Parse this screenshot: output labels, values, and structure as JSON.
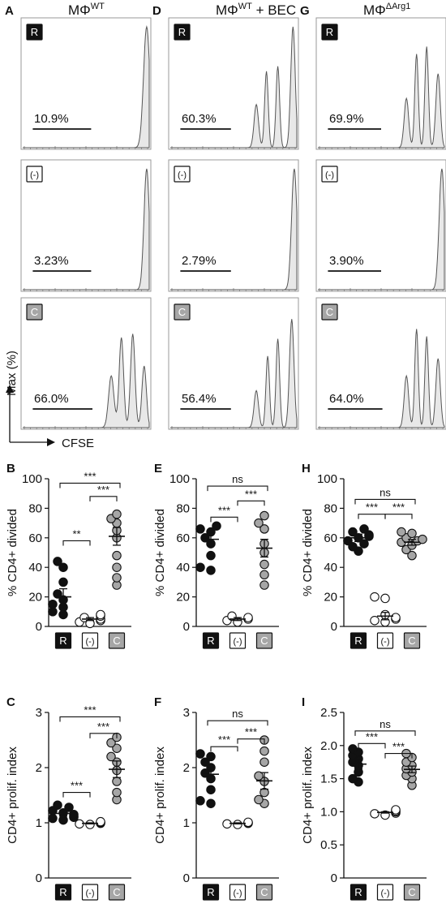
{
  "flow": {
    "columns": [
      {
        "letter": "A",
        "title": "MΦ",
        "sup": "WT",
        "rest": ""
      },
      {
        "letter": "D",
        "title": "MΦ",
        "sup": "WT",
        "rest": " + BEC"
      },
      {
        "letter": "G",
        "title": "MΦ",
        "sup": "ΔArg1",
        "rest": ""
      }
    ],
    "rows": [
      "R",
      "(-)",
      "C"
    ],
    "percents": [
      [
        "10.9%",
        "3.23%",
        "66.0%"
      ],
      [
        "60.3%",
        "2.79%",
        "56.4%"
      ],
      [
        "69.9%",
        "3.90%",
        "64.0%"
      ]
    ],
    "peaks": [
      [
        [
          {
            "pos": 0.98,
            "h": 0.98,
            "w": 0.07
          }
        ],
        [
          {
            "pos": 0.98,
            "h": 0.98,
            "w": 0.06
          }
        ],
        [
          {
            "pos": 0.7,
            "h": 0.42,
            "w": 0.06
          },
          {
            "pos": 0.78,
            "h": 0.73,
            "w": 0.05
          },
          {
            "pos": 0.87,
            "h": 0.76,
            "w": 0.05
          },
          {
            "pos": 0.96,
            "h": 0.5,
            "w": 0.05
          }
        ]
      ],
      [
        [
          {
            "pos": 0.68,
            "h": 0.35,
            "w": 0.05
          },
          {
            "pos": 0.76,
            "h": 0.62,
            "w": 0.04
          },
          {
            "pos": 0.85,
            "h": 0.66,
            "w": 0.04
          },
          {
            "pos": 0.97,
            "h": 0.98,
            "w": 0.05
          }
        ],
        [
          {
            "pos": 0.98,
            "h": 0.98,
            "w": 0.06
          }
        ],
        [
          {
            "pos": 0.68,
            "h": 0.3,
            "w": 0.05
          },
          {
            "pos": 0.77,
            "h": 0.58,
            "w": 0.04
          },
          {
            "pos": 0.85,
            "h": 0.72,
            "w": 0.04
          },
          {
            "pos": 0.96,
            "h": 0.88,
            "w": 0.05
          }
        ]
      ],
      [
        [
          {
            "pos": 0.7,
            "h": 0.4,
            "w": 0.05
          },
          {
            "pos": 0.78,
            "h": 0.76,
            "w": 0.04
          },
          {
            "pos": 0.86,
            "h": 0.82,
            "w": 0.04
          },
          {
            "pos": 0.95,
            "h": 0.6,
            "w": 0.05
          }
        ],
        [
          {
            "pos": 0.98,
            "h": 0.98,
            "w": 0.06
          }
        ],
        [
          {
            "pos": 0.7,
            "h": 0.42,
            "w": 0.05
          },
          {
            "pos": 0.78,
            "h": 0.8,
            "w": 0.04
          },
          {
            "pos": 0.86,
            "h": 0.74,
            "w": 0.04
          },
          {
            "pos": 0.95,
            "h": 0.56,
            "w": 0.05
          }
        ]
      ]
    ],
    "gate_start": 0.09,
    "gate_ends": [
      [
        0.54,
        0.54,
        0.55
      ],
      [
        0.48,
        0.48,
        0.48
      ],
      [
        0.5,
        0.5,
        0.51
      ]
    ],
    "y_axis_label": "Max (%)",
    "x_axis_label": "CFSE"
  },
  "chart_data": [
    {
      "type": "scatter",
      "panel": "B",
      "ylabel": "% CD4+ divided",
      "ylim": [
        0,
        100
      ],
      "yticks": [
        0,
        20,
        40,
        60,
        80,
        100
      ],
      "categories": [
        "R",
        "(-)",
        "C"
      ],
      "points": [
        [
          8,
          10,
          13,
          15,
          18,
          22,
          30,
          40,
          44
        ],
        [
          2,
          3,
          4,
          5,
          6,
          7,
          8
        ],
        [
          28,
          33,
          40,
          48,
          60,
          65,
          70,
          73,
          76
        ]
      ],
      "mean": [
        20,
        5,
        61
      ],
      "sem": [
        5.5,
        1,
        6
      ],
      "sig": [
        {
          "label": "**",
          "from": 0,
          "to": 1,
          "y": 58
        },
        {
          "label": "***",
          "from": 1,
          "to": 2,
          "y": 88
        },
        {
          "label": "***",
          "from": 0,
          "to": 2,
          "y": 97
        }
      ]
    },
    {
      "type": "scatter",
      "panel": "E",
      "ylabel": "% CD4+ divided",
      "ylim": [
        0,
        100
      ],
      "yticks": [
        0,
        20,
        40,
        60,
        80,
        100
      ],
      "categories": [
        "R",
        "(-)",
        "C"
      ],
      "points": [
        [
          38,
          40,
          48,
          56,
          60,
          64,
          66,
          68
        ],
        [
          3,
          4,
          5,
          6,
          7
        ],
        [
          28,
          35,
          42,
          50,
          56,
          66,
          70,
          75
        ]
      ],
      "mean": [
        59,
        5,
        53
      ],
      "sem": [
        4,
        1,
        6
      ],
      "sig": [
        {
          "label": "***",
          "from": 0,
          "to": 1,
          "y": 74
        },
        {
          "label": "***",
          "from": 1,
          "to": 2,
          "y": 85
        },
        {
          "label": "ns",
          "from": 0,
          "to": 2,
          "y": 95
        }
      ]
    },
    {
      "type": "scatter",
      "panel": "H",
      "ylabel": "% CD4+ divided",
      "ylim": [
        0,
        100
      ],
      "yticks": [
        0,
        20,
        40,
        60,
        80,
        100
      ],
      "categories": [
        "R",
        "(-)",
        "C"
      ],
      "points": [
        [
          51,
          54,
          56,
          58,
          60,
          61,
          62,
          64,
          66
        ],
        [
          3,
          4,
          5,
          6,
          8,
          19,
          20
        ],
        [
          48,
          52,
          55,
          57,
          58,
          59,
          60,
          63,
          64
        ]
      ],
      "mean": [
        60,
        7,
        57
      ],
      "sem": [
        2.5,
        2.5,
        2
      ],
      "sig": [
        {
          "label": "***",
          "from": 0,
          "to": 1,
          "y": 76
        },
        {
          "label": "***",
          "from": 1,
          "to": 2,
          "y": 76
        },
        {
          "label": "ns",
          "from": 0,
          "to": 2,
          "y": 86
        }
      ]
    },
    {
      "type": "scatter",
      "panel": "C",
      "ylabel": "CD4+ prolif. index",
      "ylim": [
        0,
        3
      ],
      "yticks": [
        0,
        1,
        2,
        3
      ],
      "categories": [
        "R",
        "(-)",
        "C"
      ],
      "points": [
        [
          1.05,
          1.08,
          1.1,
          1.12,
          1.15,
          1.18,
          1.22,
          1.28,
          1.32
        ],
        [
          0.97,
          0.98,
          0.99,
          1.0,
          1.01,
          1.02
        ],
        [
          1.42,
          1.55,
          1.75,
          1.95,
          2.1,
          2.2,
          2.35,
          2.45,
          2.55
        ]
      ],
      "mean": [
        1.17,
        0.99,
        1.97
      ],
      "sem": [
        0.05,
        0.01,
        0.15
      ],
      "sig": [
        {
          "label": "***",
          "from": 0,
          "to": 1,
          "y": 1.55
        },
        {
          "label": "***",
          "from": 1,
          "to": 2,
          "y": 2.62
        },
        {
          "label": "***",
          "from": 0,
          "to": 2,
          "y": 2.92
        }
      ]
    },
    {
      "type": "scatter",
      "panel": "F",
      "ylabel": "CD4+ prolif. index",
      "ylim": [
        0,
        3
      ],
      "yticks": [
        0,
        1,
        2,
        3
      ],
      "categories": [
        "R",
        "(-)",
        "C"
      ],
      "points": [
        [
          1.35,
          1.4,
          1.6,
          1.8,
          1.9,
          2.0,
          2.1,
          2.2,
          2.25
        ],
        [
          0.97,
          0.98,
          0.99,
          1.0,
          1.01
        ],
        [
          1.35,
          1.42,
          1.55,
          1.75,
          1.85,
          2.1,
          2.3,
          2.5
        ]
      ],
      "mean": [
        1.88,
        0.99,
        1.76
      ],
      "sem": [
        0.12,
        0.01,
        0.15
      ],
      "sig": [
        {
          "label": "***",
          "from": 0,
          "to": 1,
          "y": 2.38
        },
        {
          "label": "***",
          "from": 1,
          "to": 2,
          "y": 2.52
        },
        {
          "label": "ns",
          "from": 0,
          "to": 2,
          "y": 2.85
        }
      ]
    },
    {
      "type": "scatter",
      "panel": "I",
      "ylabel": "CD4+ prolif. index",
      "ylim": [
        0,
        2.5
      ],
      "yticks": [
        0,
        0.5,
        1.0,
        1.5,
        2.0,
        2.5
      ],
      "yticklabels": [
        "0",
        "0.5",
        "1.0",
        "1.5",
        "2.0",
        "2.5"
      ],
      "categories": [
        "R",
        "(-)",
        "C"
      ],
      "points": [
        [
          1.45,
          1.5,
          1.6,
          1.7,
          1.75,
          1.8,
          1.85,
          1.9,
          1.95
        ],
        [
          0.95,
          0.97,
          0.98,
          1.0,
          1.01,
          1.03
        ],
        [
          1.4,
          1.5,
          1.55,
          1.6,
          1.65,
          1.7,
          1.75,
          1.82,
          1.88
        ]
      ],
      "mean": [
        1.72,
        0.99,
        1.64
      ],
      "sem": [
        0.07,
        0.01,
        0.05
      ],
      "sig": [
        {
          "label": "***",
          "from": 0,
          "to": 1,
          "y": 2.03
        },
        {
          "label": "***",
          "from": 1,
          "to": 2,
          "y": 1.88
        },
        {
          "label": "ns",
          "from": 0,
          "to": 2,
          "y": 2.22
        }
      ]
    }
  ],
  "colors": {
    "fill_R": "#111111",
    "fill_neg": "#ffffff",
    "fill_C": "#a6a6a6",
    "hist_fill": "#e8e8e8"
  }
}
